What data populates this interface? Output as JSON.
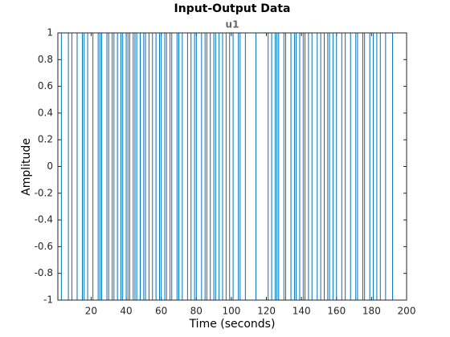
{
  "chart_data": {
    "type": "stairs",
    "title": "Input-Output Data",
    "subtitle": "u1",
    "xlabel": "Time (seconds)",
    "ylabel": "Amplitude",
    "color": "#0072bd",
    "x": [
      1,
      3,
      7,
      9,
      12,
      15,
      16,
      18,
      21,
      24,
      25,
      26,
      29,
      30,
      32,
      33,
      35,
      37,
      38,
      40,
      41,
      42,
      44,
      45,
      46,
      48,
      50,
      51,
      53,
      55,
      57,
      59,
      60,
      62,
      63,
      65,
      66,
      69,
      70,
      72,
      75,
      77,
      79,
      80,
      83,
      85,
      86,
      88,
      90,
      91,
      93,
      95,
      97,
      99,
      101,
      104,
      105,
      108,
      114,
      121,
      123,
      125,
      126,
      127,
      130,
      131,
      134,
      136,
      137,
      139,
      141,
      142,
      144,
      146,
      149,
      151,
      153,
      155,
      156,
      158,
      160,
      163,
      165,
      168,
      171,
      172,
      175,
      176,
      179,
      181,
      183,
      185,
      188,
      192
    ],
    "values": [
      1,
      -1,
      1,
      -1,
      1,
      -1,
      1,
      -1,
      1,
      -1,
      1,
      -1,
      1,
      -1,
      1,
      -1,
      1,
      -1,
      1,
      -1,
      1,
      -1,
      1,
      -1,
      1,
      -1,
      1,
      -1,
      1,
      -1,
      1,
      -1,
      1,
      -1,
      1,
      -1,
      1,
      -1,
      1,
      -1,
      1,
      -1,
      1,
      -1,
      1,
      -1,
      1,
      -1,
      1,
      -1,
      1,
      -1,
      1,
      -1,
      1,
      -1,
      1,
      -1,
      1,
      -1,
      1,
      -1,
      1,
      -1,
      1,
      -1,
      1,
      -1,
      1,
      -1,
      1,
      -1,
      1,
      -1,
      1,
      -1,
      1,
      -1,
      1,
      -1,
      1,
      -1,
      1,
      -1,
      1,
      -1,
      1,
      -1,
      1,
      -1,
      1,
      -1,
      1,
      -1
    ],
    "xlim": [
      1,
      200
    ],
    "ylim": [
      -1,
      1
    ],
    "xticks": [
      20,
      40,
      60,
      80,
      100,
      120,
      140,
      160,
      180,
      200
    ],
    "yticks": [
      -1,
      -0.8,
      -0.6,
      -0.4,
      -0.2,
      0,
      0.2,
      0.4,
      0.6,
      0.8,
      1
    ]
  }
}
